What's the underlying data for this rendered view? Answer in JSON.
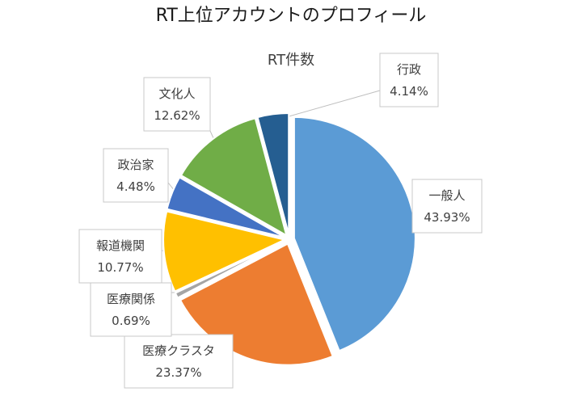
{
  "chart_data": {
    "type": "pie",
    "title": "RT上位アカウントのプロフィール",
    "subtitle": "RT件数",
    "slices": [
      {
        "name": "一般人",
        "value": 43.93,
        "label": "43.93%",
        "color": "#5b9bd5"
      },
      {
        "name": "医療クラスタ",
        "value": 23.37,
        "label": "23.37%",
        "color": "#ed7d31"
      },
      {
        "name": "医療関係",
        "value": 0.69,
        "label": "0.69%",
        "color": "#a5a5a5"
      },
      {
        "name": "報道機関",
        "value": 10.77,
        "label": "10.77%",
        "color": "#ffc000"
      },
      {
        "name": "政治家",
        "value": 4.48,
        "label": "4.48%",
        "color": "#4472c4"
      },
      {
        "name": "文化人",
        "value": 12.62,
        "label": "12.62%",
        "color": "#70ad47"
      },
      {
        "name": "行政",
        "value": 4.14,
        "label": "4.14%",
        "color": "#255e91"
      }
    ],
    "exploded": true,
    "legend": "none",
    "data_labels": "category-and-percent-with-leader-lines"
  }
}
